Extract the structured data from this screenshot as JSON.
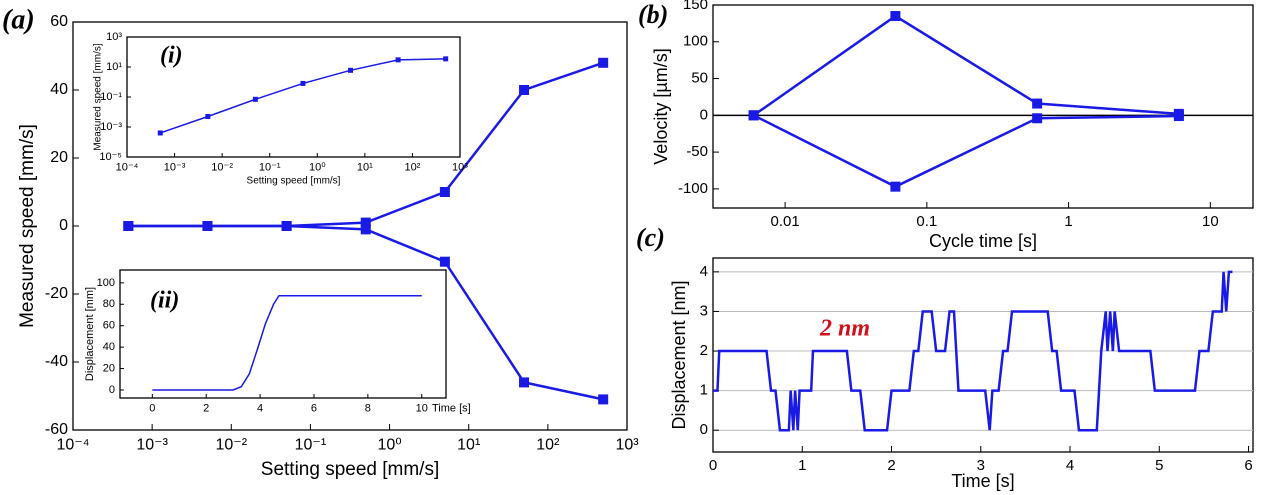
{
  "chart_data": [
    {
      "type": "line",
      "panel_label": "(a)",
      "xlabel": "Setting speed [mm/s]",
      "ylabel": "Measured speed [mm/s]",
      "xlog": true,
      "xlim": [
        0.0001,
        1000
      ],
      "ylim": [
        -60,
        60
      ],
      "xticks": [
        {
          "value": 0.0001,
          "label": "10⁻⁴"
        },
        {
          "value": 0.001,
          "label": "10⁻³"
        },
        {
          "value": 0.01,
          "label": "10⁻²"
        },
        {
          "value": 0.1,
          "label": "10⁻¹"
        },
        {
          "value": 1,
          "label": "10⁰"
        },
        {
          "value": 10,
          "label": "10¹"
        },
        {
          "value": 100,
          "label": "10²"
        },
        {
          "value": 1000,
          "label": "10³"
        }
      ],
      "yticks": [
        -60,
        -40,
        -20,
        0,
        20,
        40,
        60
      ],
      "markers": true,
      "x": [
        0.0005,
        0.005,
        0.05,
        0.5,
        5,
        50,
        500
      ],
      "series": [
        {
          "color": "#1a1ae6",
          "values": [
            0,
            0,
            0,
            1,
            10,
            40,
            48
          ]
        },
        {
          "color": "#1a1ae6",
          "values": [
            0,
            0,
            0,
            -1,
            -10.5,
            -46,
            -51
          ]
        }
      ]
    },
    {
      "type": "line",
      "panel_label": "(i)",
      "xlabel": "Setting speed [mm/s]",
      "ylabel": "Measured speed [mm/s]",
      "xlog": true,
      "ylog": true,
      "xlim": [
        0.0001,
        1000
      ],
      "ylim": [
        1e-05,
        1000
      ],
      "xticks": [
        {
          "value": 0.0001,
          "label": "10⁻⁴"
        },
        {
          "value": 0.001,
          "label": "10⁻³"
        },
        {
          "value": 0.01,
          "label": "10⁻²"
        },
        {
          "value": 0.1,
          "label": "10⁻¹"
        },
        {
          "value": 1,
          "label": "10⁰"
        },
        {
          "value": 10,
          "label": "10¹"
        },
        {
          "value": 100,
          "label": "10²"
        },
        {
          "value": 1000,
          "label": "10³"
        }
      ],
      "yticks": [
        {
          "value": 1e-05,
          "label": "10⁻⁵"
        },
        {
          "value": 0.001,
          "label": "10⁻³"
        },
        {
          "value": 0.1,
          "label": "10⁻¹"
        },
        {
          "value": 10,
          "label": "10¹"
        },
        {
          "value": 1000,
          "label": "10³"
        }
      ],
      "markers": true,
      "x": [
        0.0005,
        0.005,
        0.05,
        0.5,
        5,
        50,
        500
      ],
      "series": [
        {
          "color": "#1a1ae6",
          "values": [
            0.0004,
            0.005,
            0.07,
            0.8,
            6,
            30,
            35
          ]
        }
      ]
    },
    {
      "type": "line",
      "panel_label": "(ii)",
      "xlabel": "Time [s]",
      "ylabel": "Displacement [mm]",
      "xlim": [
        -1.2,
        10.9
      ],
      "ylim": [
        -7.5,
        112
      ],
      "xticks": [
        0,
        2,
        4,
        6,
        8,
        10
      ],
      "yticks": [
        0,
        20,
        40,
        60,
        80,
        100
      ],
      "markers": false,
      "x": [
        0,
        3,
        3.3,
        3.6,
        3.9,
        4.2,
        4.5,
        4.7,
        10
      ],
      "series": [
        {
          "color": "#1a1ae6",
          "values": [
            0,
            0,
            3,
            15,
            38,
            62,
            80,
            88,
            88
          ]
        }
      ]
    },
    {
      "type": "line",
      "panel_label": "(b)",
      "xlabel": "Cycle time [s]",
      "ylabel": "Velocity [µm/s]",
      "xlog": true,
      "xlim": [
        0.0031,
        20
      ],
      "ylim": [
        -126,
        150
      ],
      "xticks": [
        0.01,
        0.1,
        1,
        10
      ],
      "yticks": [
        -100,
        -50,
        0,
        50,
        100,
        150
      ],
      "markers": true,
      "zero_line": true,
      "x": [
        0.006,
        0.06,
        0.6,
        6
      ],
      "series": [
        {
          "color": "#1a1ae6",
          "values": [
            0,
            135,
            16,
            2
          ]
        },
        {
          "color": "#1a1ae6",
          "values": [
            0,
            -97,
            -4,
            -1
          ]
        }
      ]
    },
    {
      "type": "line",
      "panel_label": "(c)",
      "xlabel": "Time [s]",
      "ylabel": "Displacement [nm]",
      "xlim": [
        0,
        6.05
      ],
      "ylim": [
        -0.55,
        4.35
      ],
      "xticks": [
        0,
        1,
        2,
        3,
        4,
        5,
        6
      ],
      "yticks": [
        0,
        1,
        2,
        3,
        4
      ],
      "grid": true,
      "markers": false,
      "annotation": "2 nm",
      "x": [
        0,
        0.05,
        0.07,
        0.6,
        0.65,
        0.7,
        0.75,
        0.85,
        0.87,
        0.9,
        0.92,
        0.95,
        0.97,
        1.1,
        1.12,
        1.5,
        1.55,
        1.65,
        1.7,
        1.95,
        2.0,
        2.2,
        2.25,
        2.3,
        2.35,
        2.45,
        2.5,
        2.6,
        2.65,
        2.7,
        2.75,
        3.05,
        3.1,
        3.13,
        3.2,
        3.25,
        3.3,
        3.35,
        3.75,
        3.8,
        3.85,
        3.9,
        4.05,
        4.1,
        4.3,
        4.35,
        4.4,
        4.42,
        4.45,
        4.48,
        4.5,
        4.55,
        4.9,
        4.95,
        5.4,
        5.45,
        5.55,
        5.6,
        5.7,
        5.72,
        5.75,
        5.78,
        5.82
      ],
      "series": [
        {
          "color": "#1a1ae6",
          "values": [
            1,
            1,
            2,
            2,
            1,
            1,
            0,
            0,
            1,
            0,
            1,
            0,
            1,
            1,
            2,
            2,
            1,
            1,
            0,
            0,
            1,
            1,
            2,
            2,
            3,
            3,
            2,
            2,
            3,
            3,
            1,
            1,
            0,
            1,
            1,
            2,
            2,
            3,
            3,
            2,
            2,
            1,
            1,
            0,
            0,
            2,
            3,
            2,
            3,
            2,
            3,
            2,
            2,
            1,
            1,
            2,
            2,
            3,
            3,
            4,
            3,
            4,
            4
          ]
        }
      ]
    }
  ]
}
